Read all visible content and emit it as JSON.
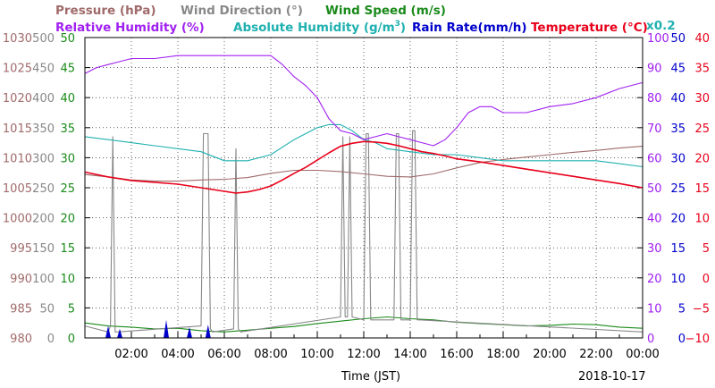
{
  "chart_data": {
    "type": "line",
    "xlabel": "Time (JST)",
    "date": "2018-10-17",
    "x_ticks": [
      "02:00",
      "04:00",
      "06:00",
      "08:00",
      "10:00",
      "12:00",
      "14:00",
      "16:00",
      "18:00",
      "20:00",
      "22:00",
      "00:00"
    ],
    "x_range_hours": [
      0,
      24
    ],
    "grid": true,
    "legend": [
      {
        "label": "Pressure (hPa)",
        "color": "#a06a6a"
      },
      {
        "label": "Wind Direction (°)",
        "color": "#888888"
      },
      {
        "label": "Wind Speed (m/s)",
        "color": "#1a8a1a"
      },
      {
        "label": "Relative Humidity (%)",
        "color": "#a020f0"
      },
      {
        "label": "Absolute Humidity (g/m",
        "sup": "3",
        "close": ")",
        "color": "#20b0b0"
      },
      {
        "label": "Rain Rate(mm/h)",
        "color": "#0000cc"
      },
      {
        "label": "Temperature (°C)",
        "color": "#e8001a"
      },
      {
        "label": "x0.2",
        "color": "#20b0b0"
      }
    ],
    "axes": {
      "pressure": {
        "ticks": [
          "1030",
          "1025",
          "1020",
          "1015",
          "1010",
          "1005",
          "1000",
          "995",
          "990",
          "985",
          "980"
        ],
        "range": [
          980,
          1030
        ],
        "color": "#a06a6a"
      },
      "wind_direction": {
        "ticks": [
          "500",
          "450",
          "400",
          "350",
          "300",
          "250",
          "200",
          "150",
          "100",
          "50",
          "0"
        ],
        "range": [
          0,
          500
        ],
        "color": "#888888"
      },
      "wind_speed": {
        "ticks": [
          "50",
          "45",
          "40",
          "35",
          "30",
          "25",
          "20",
          "15",
          "10",
          "5",
          "0"
        ],
        "range": [
          0,
          50
        ],
        "color": "#1a8a1a"
      },
      "relative_humidity": {
        "ticks": [
          "100",
          "90",
          "80",
          "70",
          "60",
          "50",
          "40",
          "30",
          "20",
          "10",
          "0"
        ],
        "range": [
          0,
          100
        ],
        "color": "#a020f0"
      },
      "rain_rate": {
        "ticks": [
          "50",
          "45",
          "40",
          "35",
          "30",
          "25",
          "20",
          "15",
          "10",
          "5",
          "0"
        ],
        "range": [
          0,
          50
        ],
        "color": "#0000cc"
      },
      "temperature": {
        "ticks": [
          "40",
          "35",
          "30",
          "25",
          "20",
          "15",
          "10",
          "5",
          "0",
          "−5",
          "−10"
        ],
        "range": [
          -10,
          40
        ],
        "color": "#e8001a"
      }
    },
    "series": [
      {
        "name": "Temperature (°C)",
        "axis": "temperature",
        "color": "#e8001a",
        "x": [
          0,
          1,
          2,
          3,
          4,
          5,
          6,
          6.5,
          7,
          7.5,
          8,
          8.5,
          9,
          9.5,
          10,
          10.5,
          11,
          11.5,
          12,
          12.5,
          13,
          13.5,
          14,
          14.5,
          15,
          15.5,
          16,
          17,
          18,
          19,
          20,
          21,
          22,
          23,
          24
        ],
        "y": [
          17.6,
          16.8,
          16.2,
          15.9,
          15.6,
          15.0,
          14.4,
          14.1,
          14.3,
          14.7,
          15.3,
          16.3,
          17.4,
          18.4,
          19.6,
          20.8,
          21.9,
          22.4,
          22.7,
          22.6,
          22.4,
          22.0,
          21.5,
          21.0,
          20.7,
          20.3,
          19.8,
          19.3,
          18.7,
          18.1,
          17.5,
          16.9,
          16.3,
          15.7,
          15.0
        ]
      },
      {
        "name": "Relative Humidity (%)",
        "axis": "relative_humidity",
        "color": "#a020f0",
        "x": [
          0,
          0.5,
          1,
          1.5,
          2,
          3,
          4,
          5,
          6,
          6.5,
          7,
          7.5,
          8,
          8.5,
          9,
          9.5,
          10,
          10.5,
          11,
          11.5,
          12,
          12.5,
          13,
          13.5,
          14,
          14.5,
          15,
          15.5,
          16,
          16.5,
          17,
          17.5,
          18,
          19,
          20,
          21,
          22,
          23,
          24
        ],
        "y": [
          88,
          90,
          91,
          92,
          93,
          93,
          94,
          94,
          94,
          94,
          94,
          94,
          94,
          91,
          87,
          84,
          80,
          73,
          69,
          68,
          66,
          67,
          68,
          67,
          66,
          65,
          64,
          66,
          70,
          75,
          77,
          77,
          75,
          75,
          77,
          78,
          80,
          83,
          85
        ]
      },
      {
        "name": "Absolute Humidity (g/m3)",
        "axis": "relative_humidity",
        "scale": "x0.2",
        "color": "#20b0b0",
        "x": [
          0,
          1,
          2,
          3,
          4,
          5,
          6,
          7,
          8,
          9,
          10,
          10.5,
          11,
          11.5,
          12,
          12.5,
          13,
          14,
          15,
          16,
          17,
          18,
          19,
          20,
          21,
          22,
          23,
          24
        ],
        "y": [
          67,
          66,
          65,
          64,
          63,
          62,
          59,
          59,
          61,
          66,
          70,
          71,
          71,
          69,
          66,
          65,
          63,
          62,
          61,
          61,
          60,
          59,
          59,
          59,
          59,
          59,
          58,
          57
        ]
      },
      {
        "name": "Pressure (hPa)",
        "axis": "pressure",
        "color": "#a06a6a",
        "x": [
          0,
          1,
          2,
          3,
          4,
          5,
          6,
          7,
          8,
          9,
          10,
          11,
          12,
          13,
          14,
          15,
          16,
          17,
          18,
          19,
          20,
          21,
          22,
          23,
          24
        ],
        "y": [
          1007.2,
          1006.8,
          1006.3,
          1006.1,
          1006.1,
          1006.3,
          1006.4,
          1006.7,
          1007.4,
          1007.9,
          1007.9,
          1007.7,
          1007.3,
          1006.9,
          1006.8,
          1007.3,
          1008.3,
          1009.2,
          1009.7,
          1010.1,
          1010.5,
          1010.9,
          1011.2,
          1011.6,
          1011.9
        ]
      },
      {
        "name": "Wind Direction (°)",
        "axis": "wind_direction",
        "color": "#888888",
        "x": [
          0,
          1,
          1.1,
          1.2,
          1.3,
          1.4,
          5,
          5.1,
          5.2,
          5.3,
          5.4,
          5.5,
          6.4,
          6.5,
          6.6,
          6.7,
          11,
          11.1,
          11.2,
          11.3,
          11.4,
          11.5,
          12,
          12.1,
          12.2,
          12.3,
          13.3,
          13.4,
          13.5,
          13.6,
          14,
          14.1,
          14.2,
          14.3,
          14.4,
          24
        ],
        "y": [
          20,
          10,
          20,
          335,
          10,
          10,
          20,
          340,
          340,
          340,
          15,
          10,
          15,
          315,
          15,
          10,
          35,
          335,
          35,
          35,
          335,
          35,
          30,
          340,
          340,
          30,
          30,
          340,
          340,
          30,
          30,
          345,
          345,
          30,
          30,
          10
        ]
      },
      {
        "name": "Wind Speed (m/s)",
        "axis": "wind_speed",
        "color": "#1a8a1a",
        "x": [
          0,
          1,
          2,
          3,
          4,
          5,
          6,
          7,
          8,
          9,
          10,
          11,
          12,
          13,
          14,
          15,
          16,
          17,
          18,
          19,
          20,
          21,
          22,
          23,
          24
        ],
        "y": [
          2.5,
          2.0,
          1.8,
          1.5,
          1.6,
          1.2,
          1.0,
          1.3,
          1.6,
          1.9,
          2.4,
          2.8,
          3.2,
          3.5,
          3.2,
          3.0,
          2.6,
          2.4,
          2.2,
          2.0,
          2.1,
          2.3,
          2.2,
          1.8,
          1.6
        ]
      },
      {
        "name": "Rain Rate(mm/h)",
        "axis": "rain_rate",
        "color": "#0000cc",
        "x": [
          1.0,
          1.5,
          3.5,
          4.5,
          5.3
        ],
        "y": [
          2.0,
          1.5,
          3.0,
          1.8,
          2.2
        ]
      }
    ]
  }
}
